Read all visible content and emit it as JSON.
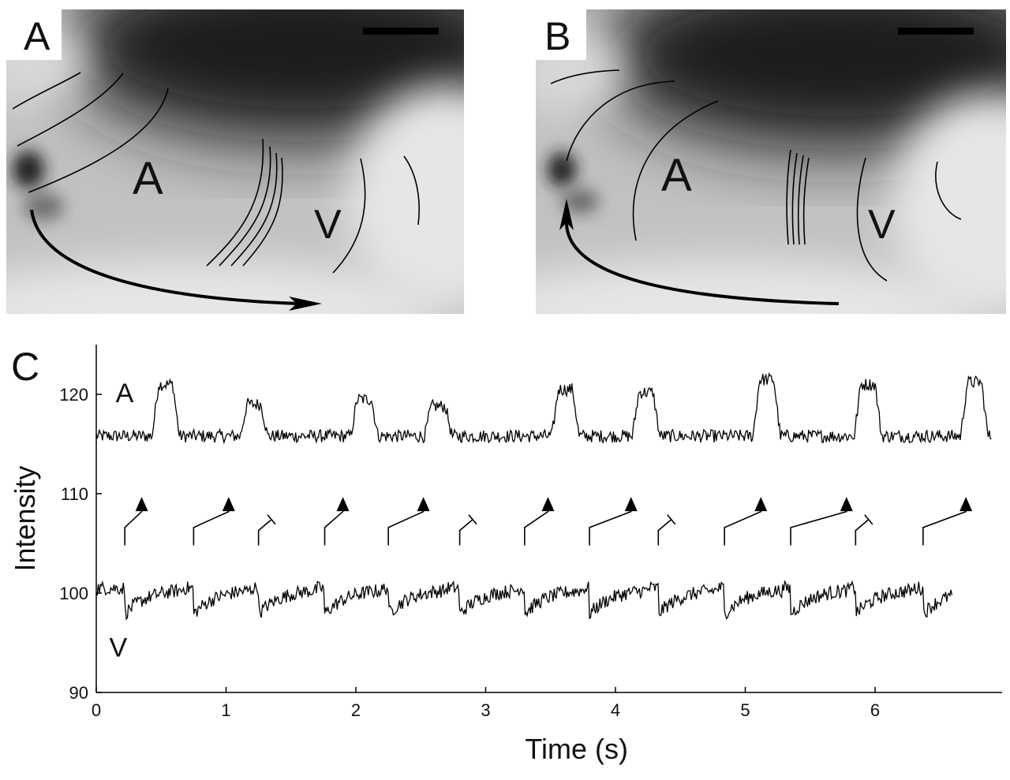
{
  "panels": {
    "a": {
      "letter": "A",
      "region_atrium": "A",
      "region_ventricle": "V"
    },
    "b": {
      "letter": "B",
      "region_atrium": "A",
      "region_ventricle": "V"
    },
    "c": {
      "letter": "C"
    }
  },
  "chart_data": {
    "type": "line",
    "xlabel": "Time (s)",
    "ylabel": "Intensity",
    "xlim": [
      0,
      7
    ],
    "ylim": [
      90,
      125
    ],
    "x_ticks": [
      0,
      1,
      2,
      3,
      4,
      5,
      6
    ],
    "y_ticks": [
      90,
      100,
      110,
      120
    ],
    "grid": false,
    "trace_labels": [
      "A",
      "V"
    ],
    "series": [
      {
        "name": "A",
        "baseline": 115.8,
        "peak_times": [
          0.52,
          1.2,
          2.05,
          2.62,
          3.6,
          4.22,
          5.15,
          5.93,
          6.75
        ],
        "peak_values": [
          121.0,
          119.0,
          119.5,
          118.8,
          120.5,
          120.2,
          121.5,
          121.0,
          121.2
        ],
        "x_range": [
          0,
          6.9
        ]
      },
      {
        "name": "V",
        "baseline": 100.5,
        "drop_times": [
          0.22,
          0.75,
          1.25,
          1.76,
          2.25,
          2.8,
          3.3,
          3.8,
          4.33,
          4.84,
          5.35,
          5.85,
          6.37
        ],
        "drop_depth": 2.6,
        "x_range": [
          0,
          6.6
        ]
      }
    ],
    "conduction": {
      "conducted": [
        {
          "v_time": 0.22,
          "a_time": 0.35
        },
        {
          "v_time": 0.75,
          "a_time": 1.02
        },
        {
          "v_time": 1.76,
          "a_time": 1.9
        },
        {
          "v_time": 2.25,
          "a_time": 2.52
        },
        {
          "v_time": 3.3,
          "a_time": 3.48
        },
        {
          "v_time": 3.8,
          "a_time": 4.12
        },
        {
          "v_time": 4.84,
          "a_time": 5.12
        },
        {
          "v_time": 5.35,
          "a_time": 5.78
        },
        {
          "v_time": 6.37,
          "a_time": 6.7
        }
      ],
      "blocked_v_times": [
        1.25,
        2.8,
        4.33,
        5.85
      ]
    }
  }
}
